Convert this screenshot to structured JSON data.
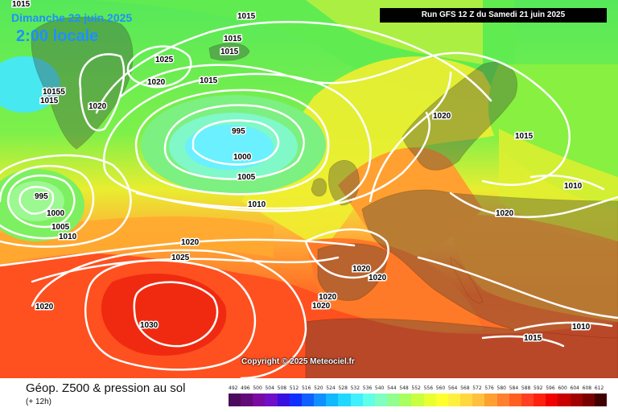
{
  "header": {
    "date": "Dimanche 22 juin 2025",
    "local_time": "2:00 locale",
    "run": "Run GFS 12 Z du Samedi 21 juin 2025"
  },
  "copyright": "Copyright © 2025 Meteociel.fr",
  "legend": {
    "title": "Géop. Z500 & pression au sol",
    "subtitle": "(+ 12h)",
    "ticks": [
      "492",
      "496",
      "500",
      "504",
      "508",
      "512",
      "516",
      "520",
      "524",
      "528",
      "532",
      "536",
      "540",
      "544",
      "548",
      "552",
      "556",
      "560",
      "564",
      "568",
      "572",
      "576",
      "580",
      "584",
      "588",
      "592",
      "596",
      "600",
      "604",
      "608",
      "612"
    ],
    "colors": [
      "#4b0a5c",
      "#620a78",
      "#7a0aa0",
      "#7010c8",
      "#3a10e0",
      "#1030ff",
      "#1060ff",
      "#1090ff",
      "#10b8ff",
      "#20d8ff",
      "#40f0ff",
      "#60ffe8",
      "#80ffc0",
      "#90ff90",
      "#a8ff60",
      "#c8ff40",
      "#e8ff30",
      "#ffff30",
      "#fff040",
      "#ffd840",
      "#ffc040",
      "#ffa030",
      "#ff8030",
      "#ff6020",
      "#ff4020",
      "#ff2010",
      "#f00000",
      "#c80000",
      "#a00000",
      "#780000",
      "#400000"
    ]
  },
  "isobars": [
    {
      "label": "1015"
    },
    {
      "label": "1015"
    },
    {
      "label": "1015"
    },
    {
      "label": "1015"
    },
    {
      "label": "1025"
    },
    {
      "label": "1020"
    },
    {
      "label": "1015"
    },
    {
      "label": "1020"
    },
    {
      "label": "10155"
    },
    {
      "label": "1015"
    },
    {
      "label": "995"
    },
    {
      "label": "1000"
    },
    {
      "label": "1005"
    },
    {
      "label": "1010"
    },
    {
      "label": "995"
    },
    {
      "label": "1000"
    },
    {
      "label": "1005"
    },
    {
      "label": "1010"
    },
    {
      "label": "1020"
    },
    {
      "label": "1025"
    },
    {
      "label": "1030"
    },
    {
      "label": "1020"
    },
    {
      "label": "1020"
    },
    {
      "label": "1020"
    },
    {
      "label": "1020"
    },
    {
      "label": "1020"
    },
    {
      "label": "1020"
    },
    {
      "label": "1015"
    },
    {
      "label": "1010"
    },
    {
      "label": "1020"
    },
    {
      "label": "1010"
    },
    {
      "label": "1015"
    }
  ]
}
